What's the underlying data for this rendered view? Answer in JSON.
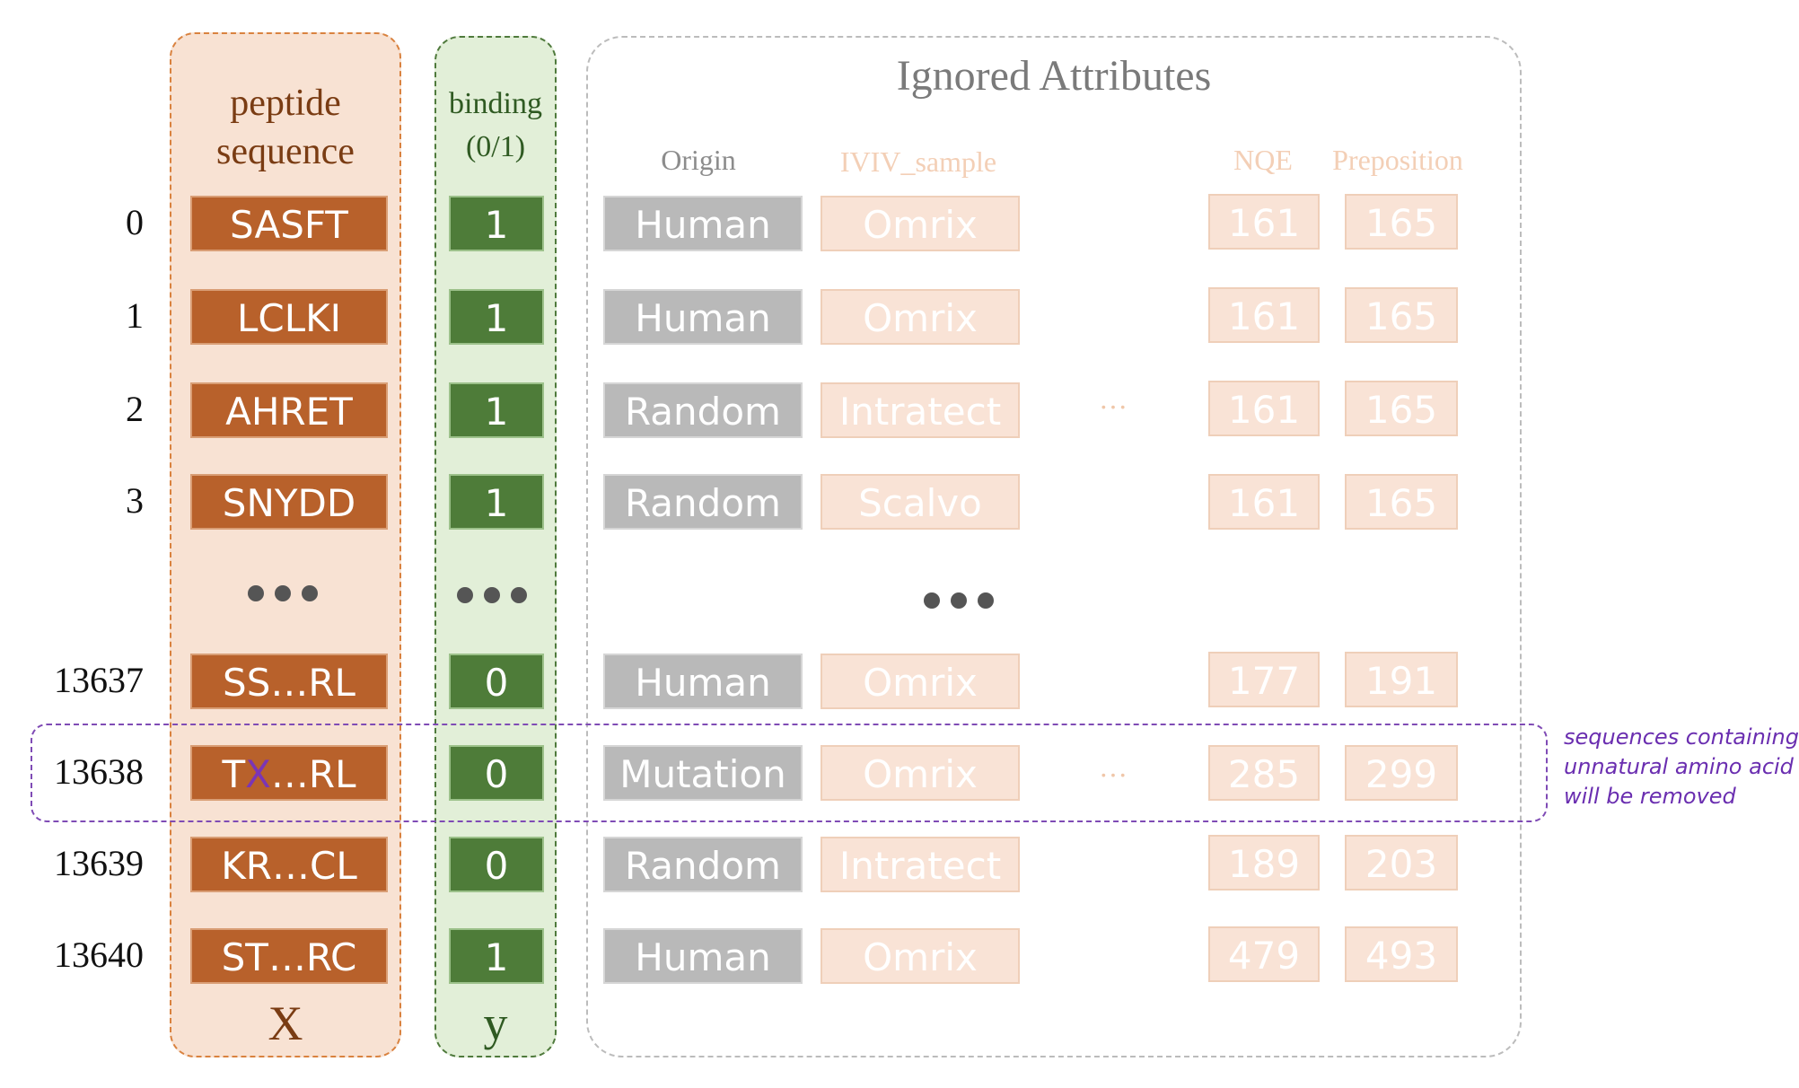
{
  "headers": {
    "x": "peptide sequence",
    "y_line1": "binding",
    "y_line2": "(0/1)",
    "ignored": "Ignored Attributes",
    "origin": "Origin",
    "ivv_sample": "IVIV_sample",
    "nqe": "NQE",
    "preposition": "Preposition"
  },
  "rows": [
    {
      "index": "0",
      "sequence": "SASFT",
      "binding": "1",
      "origin": "Human",
      "sample": "Omrix",
      "nqe": "161",
      "preposition": "165"
    },
    {
      "index": "1",
      "sequence": "LCLKI",
      "binding": "1",
      "origin": "Human",
      "sample": "Omrix",
      "nqe": "161",
      "preposition": "165"
    },
    {
      "index": "2",
      "sequence": "AHRET",
      "binding": "1",
      "origin": "Random",
      "sample": "Intratect",
      "nqe": "161",
      "preposition": "165"
    },
    {
      "index": "3",
      "sequence": "SNYDD",
      "binding": "1",
      "origin": "Random",
      "sample": "Scalvo",
      "nqe": "161",
      "preposition": "165"
    },
    {
      "index": "13637",
      "sequence": "SS…RL",
      "binding": "0",
      "origin": "Human",
      "sample": "Omrix",
      "nqe": "177",
      "preposition": "191"
    },
    {
      "index": "13638",
      "sequence_a": "T",
      "sequence_x": "X",
      "sequence_b": "…RL",
      "binding": "0",
      "origin": "Mutation",
      "sample": "Omrix",
      "nqe": "285",
      "preposition": "299"
    },
    {
      "index": "13639",
      "sequence": "KR…CL",
      "binding": "0",
      "origin": "Random",
      "sample": "Intratect",
      "nqe": "189",
      "preposition": "203"
    },
    {
      "index": "13640",
      "sequence": "ST…RC",
      "binding": "1",
      "origin": "Human",
      "sample": "Omrix",
      "nqe": "479",
      "preposition": "493"
    }
  ],
  "ellipsis_small": "···",
  "note": "sequences containing\nunnatural amino acid\nwill be removed",
  "footer": {
    "x": "X",
    "y": "y"
  },
  "colors": {
    "sequence": "#b8612b",
    "binding": "#4e7c39",
    "origin": "#b9b9b9",
    "ignored_faded": "#f9e3d6",
    "highlight": "#7f4bb5"
  }
}
